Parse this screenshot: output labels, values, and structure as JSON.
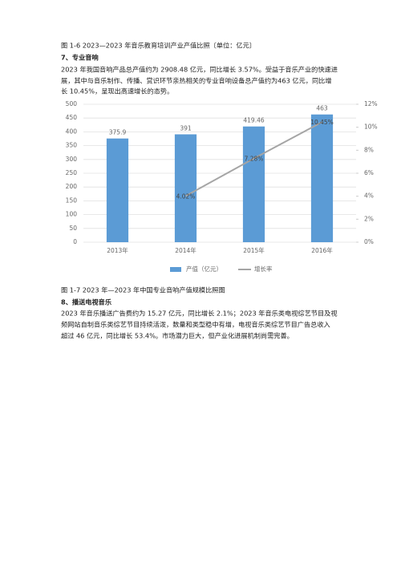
{
  "caption1": "图 1-6 2023—2023 年音乐教育培训产业产值比照〔单位：亿元〕",
  "heading1": "7、专业音响",
  "paragraph1": [
    "2023 年我国音响产品总产值约为 2908.48 亿元，同比增长 3.57%。受益于音乐产业的快速进",
    "展，其中与音乐制作、传播、赏识环节亲热相关的专业音响设备总产值约为463 亿元，同比增",
    "长 10.45%，呈现出高速增长的态势。"
  ],
  "chart_data": {
    "type": "bar",
    "categories": [
      "2013年",
      "2014年",
      "2015年",
      "2016年"
    ],
    "series": [
      {
        "name": "产值（亿元）",
        "type": "bar",
        "color": "#5b9bd5",
        "values": [
          375.9,
          391,
          419.46,
          463
        ]
      },
      {
        "name": "增长率",
        "type": "line",
        "axis": "y2",
        "color": "#a5a5a5",
        "values": [
          null,
          4.02,
          7.28,
          10.45
        ],
        "value_labels": [
          null,
          "4.02%",
          "7.28%",
          "10.45%"
        ]
      }
    ],
    "ylim": [
      0,
      500
    ],
    "yticks": [
      0,
      50,
      100,
      150,
      200,
      250,
      300,
      350,
      400,
      450,
      500
    ],
    "y2lim": [
      0,
      12
    ],
    "y2ticks": [
      {
        "value": 0,
        "label": "0%"
      },
      {
        "value": 2,
        "label": "2%"
      },
      {
        "value": 4,
        "label": "4%"
      },
      {
        "value": 6,
        "label": "6%"
      },
      {
        "value": 8,
        "label": "8%"
      },
      {
        "value": 10,
        "label": "10%"
      },
      {
        "value": 12,
        "label": "12%"
      }
    ],
    "grid": true,
    "legend": "bottom"
  },
  "caption2": "图 1-7 2023 年—2023 年中国专业音响产值规模比照图",
  "heading2": "8、播送电视音乐",
  "paragraph2": [
    "2023 年音乐播送广告费约为 15.27 亿元，同比增长 2.1%；2023 年音乐类电视综艺节目及视",
    "频网站自制音乐类综艺节目持续活泼，数量和类型稳中有增，电视音乐类综艺节目广告总收入",
    "超过 46 亿元，同比增长 53.4%。市场潜力巨大，但产业化进展机制尚需完善。"
  ]
}
